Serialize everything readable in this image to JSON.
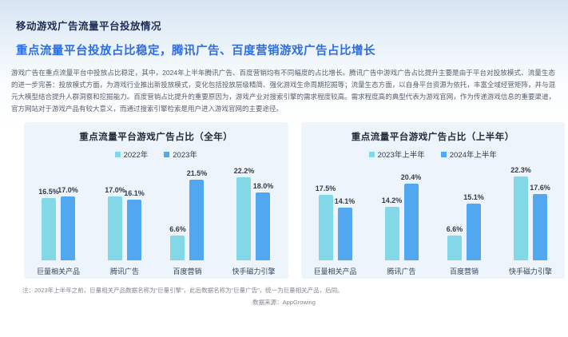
{
  "page": {
    "title": "移动游戏广告流量平台投放情况",
    "subtitle": "重点流量平台投放占比稳定，腾讯广告、百度营销游戏广告占比增长",
    "body": "游戏广告在重点流量平台中投放占比稳定，其中，2024年上半年腾讯广告、百度营销均有不同幅度的占比增长。腾讯广告中游戏广告占比提升主要是由于平台对投放模式、流量生态的进一步完善：投放模式方面，为游戏行业推出新投放模式，变化包括投放层级精简、强化游戏生命周期挖掘等；流量生态方面，以自身平台资源为依托，丰富全域经营矩阵，并与混元大模型结合提升人群洞察和挖掘能力。百度营销占比提升的重要原因为，游戏产业对搜索引擎的需求程度较高。需求程度高的典型代表为游戏官网，作为传递游戏信息的重要渠道，官方网站对于游戏产品有较大意义，而通过搜索引擎检索是用户进入游戏官网的主要途径。",
    "note": "注：2023年上半年之前，巨量相关产品数据名称为“巨量引擎”，此后数据名称为“巨量广告”，统一为巨量相关产品，后同。",
    "source": "数据来源：AppGrowing"
  },
  "colors": {
    "series": [
      "#82d8e6",
      "#51a8f0"
    ],
    "title": "#1d2e54",
    "subtitle": "#2b6de4",
    "card_bg": "#edf4fc"
  },
  "chart_data": [
    {
      "type": "bar",
      "title": "重点流量平台游戏广告占比（全年）",
      "categories": [
        "巨量相关产品",
        "腾讯广告",
        "百度营销",
        "快手磁力引擎"
      ],
      "series": [
        {
          "name": "2022年",
          "values": [
            16.5,
            17.0,
            6.6,
            22.2
          ]
        },
        {
          "name": "2023年",
          "values": [
            17.0,
            16.1,
            21.5,
            18.0
          ]
        }
      ],
      "unit": "%",
      "ylim": [
        0,
        25
      ],
      "grid": false,
      "legend_position": "top"
    },
    {
      "type": "bar",
      "title": "重点流量平台游戏广告占比（上半年）",
      "categories": [
        "巨量相关产品",
        "腾讯广告",
        "百度营销",
        "快手磁力引擎"
      ],
      "series": [
        {
          "name": "2023年上半年",
          "values": [
            17.5,
            14.2,
            6.6,
            22.3
          ]
        },
        {
          "name": "2024年上半年",
          "values": [
            14.1,
            20.4,
            15.1,
            17.6
          ]
        }
      ],
      "unit": "%",
      "ylim": [
        0,
        25
      ],
      "grid": false,
      "legend_position": "top"
    }
  ]
}
